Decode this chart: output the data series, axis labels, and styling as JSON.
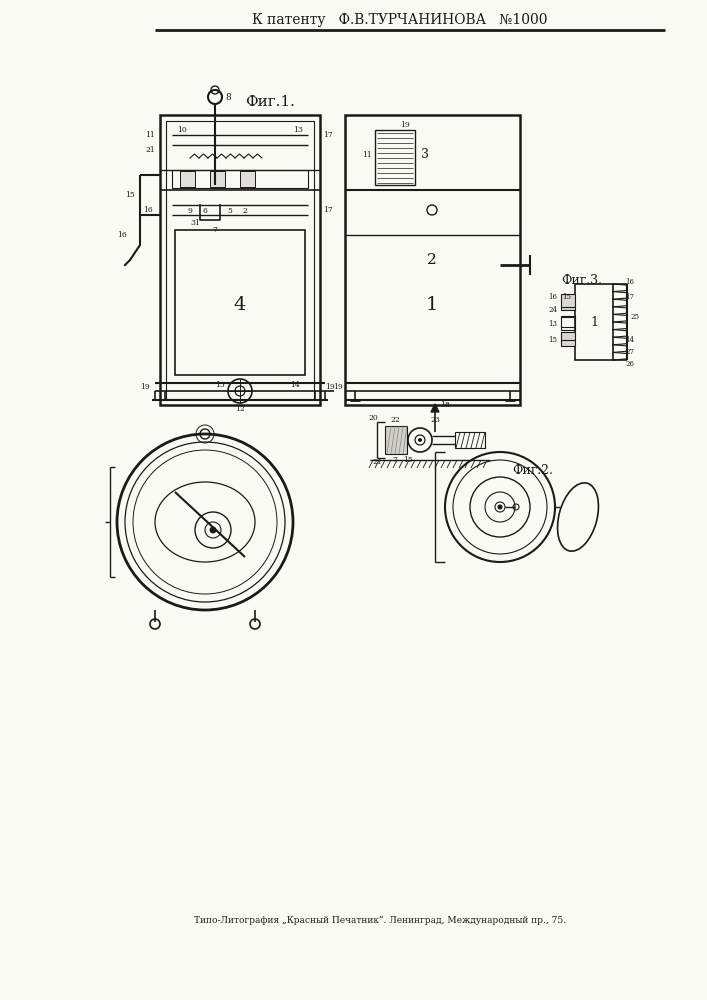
{
  "title_text": "К патенту   Ф.В.ТУРЧАНИНОВА   №1000",
  "fig1_label": "Фиг.1.",
  "fig2_label": "Фиг.2.",
  "fig3_label": "Фиг.3.",
  "footer_text": "Типо-Литография „Красный Печатник“. Ленинград, Международный пр., 75.",
  "bg_color": "#f0efe8",
  "line_color": "#1a1a1a",
  "paper_color": "#fafaf5"
}
